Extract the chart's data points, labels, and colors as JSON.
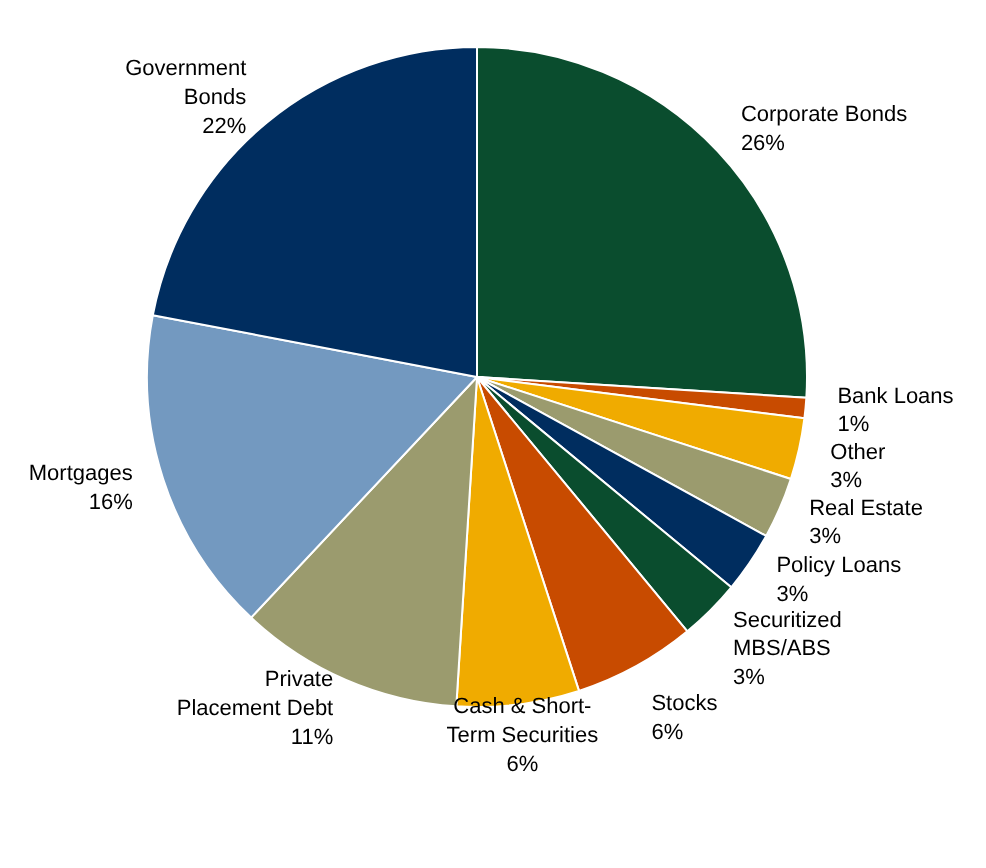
{
  "chart_data": {
    "type": "pie",
    "categories": [
      "Corporate Bonds",
      "Bank Loans",
      "Other",
      "Real Estate",
      "Policy Loans",
      "Securitized\nMBS/ABS",
      "Stocks",
      "Cash & Short-\nTerm Securities",
      "Private\nPlacement Debt",
      "Mortgages",
      "Government\nBonds"
    ],
    "values": [
      26,
      1,
      3,
      3,
      3,
      3,
      6,
      6,
      11,
      16,
      22
    ],
    "colors": [
      "#0a4d2e",
      "#c84b00",
      "#f0ab00",
      "#9b9b6e",
      "#002d5f",
      "#0a4d2e",
      "#c84b00",
      "#f0ab00",
      "#9b9b6e",
      "#7399c0",
      "#002d5f"
    ],
    "value_labels": [
      "26%",
      "1%",
      "3%",
      "3%",
      "3%",
      "3%",
      "6%",
      "6%",
      "11%",
      "16%",
      "22%"
    ]
  }
}
